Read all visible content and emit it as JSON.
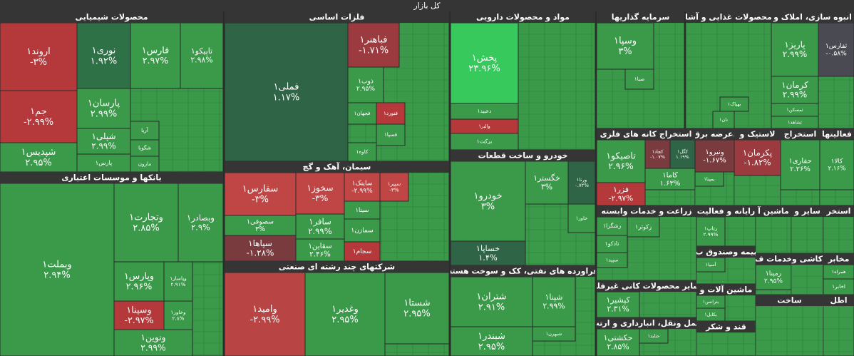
{
  "title": "کل بازار",
  "sectors": [
    {
      "name": "محصولات شیمیایی",
      "tiles": [
        {
          "symbol": "اروند۱",
          "change": "-۳%",
          "color": "#b5393b"
        },
        {
          "symbol": "جم۱",
          "change": "-۲.۹۹%",
          "color": "#b5393b"
        },
        {
          "symbol": "شپدیس۱",
          "change": "۲.۹۵%",
          "color": "#3a9a4a"
        },
        {
          "symbol": "نوری۱",
          "change": "۱.۹۲%",
          "color": "#2f7146"
        },
        {
          "symbol": "فارس۱",
          "change": "۲.۹۷%",
          "color": "#3a9a4a"
        },
        {
          "symbol": "تاپیکو۱",
          "change": "۲.۹۸%",
          "color": "#3a9a4a"
        },
        {
          "symbol": "پارسان۱",
          "change": "۲.۹۹%",
          "color": "#3a9a4a"
        },
        {
          "symbol": "شپلی۱",
          "change": "۲.۹۹%",
          "color": "#3a9a4a"
        },
        {
          "symbol": "پارس۱",
          "color": "#3a9a4a"
        },
        {
          "symbol": "آریا",
          "color": "#3a9a4a"
        },
        {
          "symbol": "شگویا",
          "color": "#3a9a4a"
        },
        {
          "symbol": "مارون",
          "color": "#3a9a4a"
        }
      ]
    },
    {
      "name": "بانکها و موسسات اعتباری",
      "tiles": [
        {
          "symbol": "وبملت۱",
          "change": "۲.۹۴%",
          "color": "#3a9a4a"
        },
        {
          "symbol": "وتجارت۱",
          "change": "۲.۸۵%",
          "color": "#3a9a4a"
        },
        {
          "symbol": "وبصادر۱",
          "change": "۲.۹%",
          "color": "#3a9a4a"
        },
        {
          "symbol": "وپارس۱",
          "change": "۲.۹۶%",
          "color": "#3a9a4a"
        },
        {
          "symbol": "وپاسار۱",
          "change": "۲.۹۱%",
          "color": "#3a9a4a"
        },
        {
          "symbol": "وسینا۱",
          "change": "-۲.۹۷%",
          "color": "#b5393b"
        },
        {
          "symbol": "وخاور۱",
          "change": "۲.۸%",
          "color": "#3a9a4a"
        },
        {
          "symbol": "ونوین۱",
          "change": "۲.۹۹%",
          "color": "#3a9a4a"
        }
      ]
    },
    {
      "name": "فلزات اساسی",
      "tiles": [
        {
          "symbol": "فملی۱",
          "change": "۱.۱۷%",
          "color": "#2f6447"
        },
        {
          "symbol": "فباهنر۱",
          "change": "-۱.۷۱%",
          "color": "#9c3b3f"
        },
        {
          "symbol": "ذوب۱",
          "change": "۲.۹۵%",
          "color": "#3a9a4a"
        },
        {
          "symbol": "فجهان۱",
          "color": "#3a9a4a"
        },
        {
          "symbol": "فنورد۱",
          "color": "#b5393b"
        },
        {
          "symbol": "فسپا۱",
          "color": "#3a9a4a"
        },
        {
          "symbol": "کاوه۱",
          "color": "#3a9a4a"
        }
      ]
    },
    {
      "name": "سیمان، آهک و گچ",
      "tiles": [
        {
          "symbol": "سفارس۱",
          "change": "-۳%",
          "color": "#c04545"
        },
        {
          "symbol": "سخوز۱",
          "change": "-۳%",
          "color": "#c04545"
        },
        {
          "symbol": "ساینک۱",
          "change": "-۲.۹۹%",
          "color": "#c04545"
        },
        {
          "symbol": "سپیر۱",
          "change": "-۳%",
          "color": "#c04545"
        },
        {
          "symbol": "سصوفی۱",
          "change": "۳%",
          "color": "#3a9a4a"
        },
        {
          "symbol": "سپاها۱",
          "change": "-۱.۲۸%",
          "color": "#7a3b3e"
        },
        {
          "symbol": "سافر۱",
          "change": "۲.۹۹%",
          "color": "#3a9a4a"
        },
        {
          "symbol": "سیتا۱",
          "color": "#3a9a4a"
        },
        {
          "symbol": "سمازن۱",
          "color": "#3a9a4a"
        },
        {
          "symbol": "سقاین۱",
          "change": "۲.۴۶%",
          "color": "#3a9a4a"
        },
        {
          "symbol": "سجام۱",
          "color": "#b5393b"
        }
      ]
    },
    {
      "name": "شرکتهای چند رشته ای صنعتی",
      "tiles": [
        {
          "symbol": "وامید۱",
          "change": "-۲.۹۹%",
          "color": "#b94444"
        },
        {
          "symbol": "وغدیر۱",
          "change": "۲.۹۵%",
          "color": "#3a9a4a"
        },
        {
          "symbol": "شستا۱",
          "change": "۲.۹۵%",
          "color": "#3a9a4a"
        }
      ]
    },
    {
      "name": "مواد و محصولات دارویی",
      "tiles": [
        {
          "symbol": "پخش۱",
          "change": "۲۳.۹۶%",
          "color": "#37c95c"
        },
        {
          "symbol": "دعبید۱",
          "color": "#3a9a4a"
        },
        {
          "symbol": "والبر۱",
          "color": "#b5393b"
        },
        {
          "symbol": "برکت۱",
          "color": "#3a9a4a"
        }
      ]
    },
    {
      "name": "خودرو و ساخت قطعات",
      "tiles": [
        {
          "symbol": "خودرو۱",
          "change": "۳%",
          "color": "#3a9a4a"
        },
        {
          "symbol": "خساپا۱",
          "change": "۱.۴%",
          "color": "#2f6447"
        },
        {
          "symbol": "خگستر۱",
          "change": "۳%",
          "color": "#3a9a4a"
        },
        {
          "symbol": "ورنا۱",
          "change": "۰.۷۲%",
          "color": "#2f6447"
        },
        {
          "symbol": "خاور۱",
          "color": "#3a9a4a"
        }
      ]
    },
    {
      "name": "فراورده های نفتی، کک و سوخت هسته",
      "tiles": [
        {
          "symbol": "شتران۱",
          "change": "۲.۹۱%",
          "color": "#3a9a4a"
        },
        {
          "symbol": "شبندر۱",
          "change": "۲.۹۵%",
          "color": "#3a9a4a"
        },
        {
          "symbol": "شپنا۱",
          "change": "۲.۹۹%",
          "color": "#3a9a4a"
        },
        {
          "symbol": "شبهرن۱",
          "color": "#3a9a4a"
        }
      ]
    },
    {
      "name": "سرمایه گذاریها",
      "tiles": [
        {
          "symbol": "وسپا۱",
          "change": "۳%",
          "color": "#3a9a4a"
        },
        {
          "symbol": "صبا۱",
          "color": "#3a9a4a"
        }
      ]
    },
    {
      "name": "محصولات غذایی و آشا",
      "tiles": [
        {
          "symbol": "بهپاک۱",
          "color": "#3a9a4a"
        },
        {
          "symbol": "نان۱",
          "color": "#3a9a4a"
        }
      ]
    },
    {
      "name": "انبوه سازی، املاک و",
      "tiles": [
        {
          "symbol": "پاریز۱",
          "change": "۲.۹۹%",
          "color": "#3a9a4a"
        },
        {
          "symbol": "ثفارس۱",
          "change": "-۰.۵۸%",
          "color": "#4a4a52"
        },
        {
          "symbol": "کرمان۱",
          "change": "۲.۹۹%",
          "color": "#3a9a4a"
        },
        {
          "symbol": "ثمسکن۱",
          "color": "#3a9a4a"
        },
        {
          "symbol": "ثشاهد۱",
          "color": "#3a9a4a"
        }
      ]
    },
    {
      "name": "استخراج کانه های فلزی",
      "tiles": [
        {
          "symbol": "تاصیکو۱",
          "change": "۲.۹۶%",
          "color": "#3a9a4a"
        },
        {
          "symbol": "فزر۱",
          "change": "-۲.۹۷%",
          "color": "#b5393b"
        },
        {
          "symbol": "کچاد۱",
          "change": "-۱.۰۷%",
          "color": "#7a3b3e"
        },
        {
          "symbol": "کگل۱",
          "change": "۱.۱۹%",
          "color": "#2f6447"
        },
        {
          "symbol": "کاما۱",
          "change": "۱.۶۳%",
          "color": "#3a9a4a"
        }
      ]
    },
    {
      "name": "عرضه برق،",
      "tiles": [
        {
          "symbol": "ونیرو۱",
          "change": "-۱.۶۷%",
          "color": "#7a3b3e"
        },
        {
          "symbol": "بمپنا۱",
          "color": "#3a9a4a"
        }
      ]
    },
    {
      "name": "لاستیک و",
      "tiles": [
        {
          "symbol": "پکرمان۱",
          "change": "-۱.۸۲%",
          "color": "#9c3b3f"
        }
      ]
    },
    {
      "name": "استخراج",
      "tiles": [
        {
          "symbol": "حفاری۱",
          "change": "۲.۲۶%",
          "color": "#3a9a4a"
        }
      ]
    },
    {
      "name": "فعالیتها",
      "tiles": [
        {
          "symbol": "کالا۱",
          "change": "۲.۱۶%",
          "color": "#3a9a4a"
        }
      ]
    },
    {
      "name": "زراعت و خدمات وابسته",
      "tiles": [
        {
          "symbol": "زکوثر۱",
          "color": "#3a9a4a"
        },
        {
          "symbol": "زشگزا۱",
          "color": "#3a9a4a"
        },
        {
          "symbol": "تادکو۱",
          "color": "#3a9a4a"
        },
        {
          "symbol": "سپید۱",
          "color": "#3a9a4a"
        }
      ]
    },
    {
      "name": "رایانه و فعالیت",
      "tiles": [
        {
          "symbol": "رتاپ۱",
          "change": "۲.۹۹%",
          "color": "#3a9a4a"
        }
      ]
    },
    {
      "name": "ماشین آ",
      "tiles": []
    },
    {
      "name": "سایر و",
      "tiles": []
    },
    {
      "name": "استخر",
      "tiles": []
    },
    {
      "name": "بیمه وصندوق ب",
      "tiles": [
        {
          "symbol": "آسیا۱",
          "color": "#3a9a4a"
        }
      ]
    },
    {
      "name": "خدمات ف",
      "tiles": [
        {
          "symbol": "رمپنا۱",
          "change": "۲.۹۵%",
          "color": "#3a9a4a"
        }
      ]
    },
    {
      "name": "کاشی و",
      "tiles": []
    },
    {
      "name": "مخابر",
      "tiles": [
        {
          "symbol": "همراه۱",
          "color": "#3a9a4a"
        },
        {
          "symbol": "اخابر۱",
          "color": "#3a9a4a"
        }
      ]
    },
    {
      "name": "سایر محصولات کانی غیرفلز",
      "tiles": [
        {
          "symbol": "کپشیر۱",
          "change": "۲.۳۱%",
          "color": "#3a9a4a"
        }
      ]
    },
    {
      "name": "ماشین آلات و",
      "tiles": [
        {
          "symbol": "بترانس۱",
          "color": "#3a9a4a"
        },
        {
          "symbol": "بکابل۱",
          "color": "#3a9a4a"
        }
      ]
    },
    {
      "name": "حمل ونقل، انبارداری و ارتب",
      "tiles": [
        {
          "symbol": "حکشتی۱",
          "change": "۲.۸۵%",
          "color": "#3a9a4a"
        },
        {
          "symbol": "حتاید۱",
          "color": "#3a9a4a"
        }
      ]
    },
    {
      "name": "قند و شکر",
      "tiles": []
    },
    {
      "name": "ساخت",
      "tiles": []
    },
    {
      "name": "اطل",
      "tiles": []
    }
  ]
}
